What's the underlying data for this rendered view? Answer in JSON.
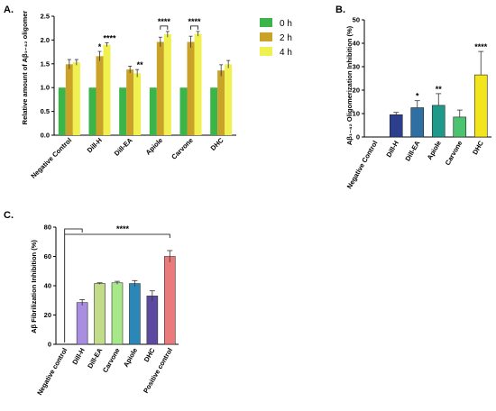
{
  "chart_data": [
    {
      "id": "A",
      "type": "bar",
      "panel_label": "A.",
      "ylabel": "Relative amount of Aβ₁₋₄₂ oligomer",
      "ylim": [
        0,
        2.5
      ],
      "yticks": [
        "0.0",
        "0.5",
        "1.0",
        "1.5",
        "2.0",
        "2.5"
      ],
      "categories": [
        "Negative Control",
        "Dill-H",
        "Dill-EA",
        "Apiole",
        "Carvone",
        "DHC"
      ],
      "series": [
        {
          "name": "0 h",
          "color": "#3bb54a",
          "values": [
            1.0,
            1.0,
            1.0,
            1.0,
            1.0,
            1.0
          ],
          "errors": [
            0,
            0,
            0,
            0,
            0,
            0
          ]
        },
        {
          "name": "2 h",
          "color": "#c9a227",
          "values": [
            1.49,
            1.66,
            1.38,
            1.96,
            1.96,
            1.36
          ],
          "errors": [
            0.1,
            0.1,
            0.07,
            0.1,
            0.12,
            0.12
          ]
        },
        {
          "name": "4 h",
          "color": "#f0f050",
          "values": [
            1.53,
            1.9,
            1.3,
            2.12,
            2.13,
            1.49
          ],
          "errors": [
            0.06,
            0.04,
            0.08,
            0.06,
            0.05,
            0.08
          ]
        }
      ],
      "significance": [
        {
          "text": "*",
          "category": 1,
          "series": 1
        },
        {
          "text": "****",
          "category": 1,
          "series": 2
        },
        {
          "text": "**",
          "category": 2,
          "series": 2
        },
        {
          "text": "****",
          "category": 3,
          "bracket": true
        },
        {
          "text": "****",
          "category": 4,
          "bracket": true
        }
      ],
      "legend": {
        "position": "right",
        "items": [
          "0 h",
          "2 h",
          "4 h"
        ]
      }
    },
    {
      "id": "B",
      "type": "bar",
      "panel_label": "B.",
      "ylabel": "Aβ₁₋₄₂ Oligomerization Inhibition (%)",
      "ylim": [
        0,
        50
      ],
      "yticks": [
        "0",
        "10",
        "20",
        "30",
        "40",
        "50"
      ],
      "categories": [
        "Negative Control",
        "Dill-H",
        "Dill-EA",
        "Apiole",
        "Carvone",
        "DHC"
      ],
      "values": [
        0,
        9.5,
        12.5,
        13.5,
        8.5,
        26.5
      ],
      "errors": [
        0,
        1,
        3,
        5,
        3,
        10
      ],
      "colors": [
        "#2b2f7a",
        "#2b3f8c",
        "#2f6fa2",
        "#1f9a8a",
        "#4cc36e",
        "#f2e41d"
      ],
      "significance": [
        {
          "text": "",
          "category": 0
        },
        {
          "text": "",
          "category": 1
        },
        {
          "text": "*",
          "category": 2
        },
        {
          "text": "**",
          "category": 3
        },
        {
          "text": "",
          "category": 4
        },
        {
          "text": "****",
          "category": 5
        }
      ]
    },
    {
      "id": "C",
      "type": "bar",
      "panel_label": "C.",
      "ylabel": "Aβ Fibrilization Inhibition (%)",
      "ylim": [
        0,
        80
      ],
      "yticks": [
        "0",
        "20",
        "40",
        "60",
        "80"
      ],
      "categories": [
        "Negative control",
        "Dill-H",
        "Dill-EA",
        "Carvone",
        "Apiole",
        "DHC",
        "Positive control"
      ],
      "values": [
        0,
        28.5,
        41.5,
        42,
        41.5,
        33,
        60
      ],
      "errors": [
        0,
        2,
        0.5,
        1,
        2,
        3.5,
        4
      ],
      "colors": [
        "#ffffff",
        "#a88de0",
        "#c2dc8a",
        "#a6e88a",
        "#2b87b8",
        "#5b4aa0",
        "#ea7a7c"
      ],
      "significance": [
        {
          "text": "****",
          "bracket_from": 0,
          "bracket_to_first": 1,
          "bracket_to_last": 6
        }
      ]
    }
  ]
}
